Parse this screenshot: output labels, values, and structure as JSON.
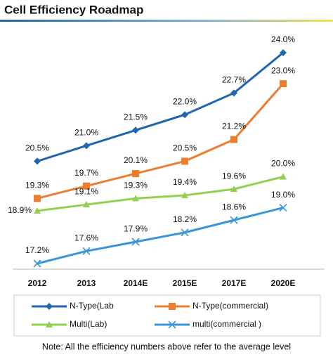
{
  "chart_data": {
    "type": "line",
    "title": "Cell Efficiency Roadmap",
    "categories": [
      "2012",
      "2013",
      "2014E",
      "2015E",
      "2017E",
      "2020E"
    ],
    "series": [
      {
        "name": "N-Type(Lab",
        "color": "#1f66ad",
        "marker": "diamond",
        "values": [
          20.5,
          21.0,
          21.5,
          22.0,
          22.7,
          24.0
        ],
        "value_labels": [
          "20.5%",
          "21.0%",
          "21.5%",
          "22.0%",
          "22.7%",
          "24.0%"
        ]
      },
      {
        "name": "N-Type(commercial)",
        "color": "#ed7d31",
        "marker": "square",
        "values": [
          19.3,
          19.7,
          20.1,
          20.5,
          21.2,
          23.0
        ],
        "value_labels": [
          "19.3%",
          "19.7%",
          "20.1%",
          "20.5%",
          "21.2%",
          "23.0%"
        ]
      },
      {
        "name": "Multi(Lab)",
        "color": "#92d050",
        "marker": "triangle",
        "values": [
          18.9,
          19.1,
          19.3,
          19.4,
          19.6,
          20.0
        ],
        "value_labels": [
          "18.9%",
          "19.1%",
          "19.3%",
          "19.4%",
          "19.6%",
          "20.0%"
        ]
      },
      {
        "name": "multi(commercial )",
        "color": "#3a95d8",
        "marker": "x",
        "values": [
          17.2,
          17.6,
          17.9,
          18.2,
          18.6,
          19.0
        ],
        "value_labels": [
          "17.2%",
          "17.6%",
          "17.9%",
          "18.2%",
          "18.6%",
          "19.0%"
        ]
      }
    ],
    "note": "Note: All the efficiency numbers above refer to the average level"
  }
}
